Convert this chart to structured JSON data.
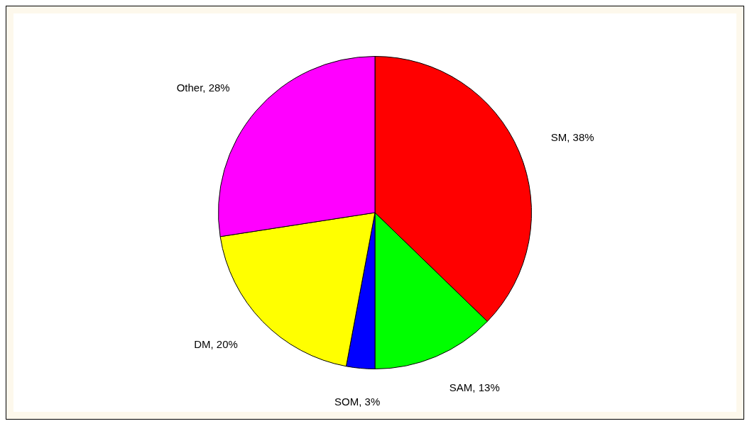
{
  "chart_data": {
    "type": "pie",
    "categories": [
      "SM",
      "SAM",
      "SOM",
      "DM",
      "Other"
    ],
    "values": [
      38,
      13,
      3,
      20,
      28
    ],
    "colors": [
      "#ff0000",
      "#00ff00",
      "#0000ff",
      "#ffff00",
      "#ff00ff"
    ],
    "value_labels": [
      "38%",
      "13%",
      "3%",
      "20%",
      "28%"
    ],
    "legend": false
  }
}
